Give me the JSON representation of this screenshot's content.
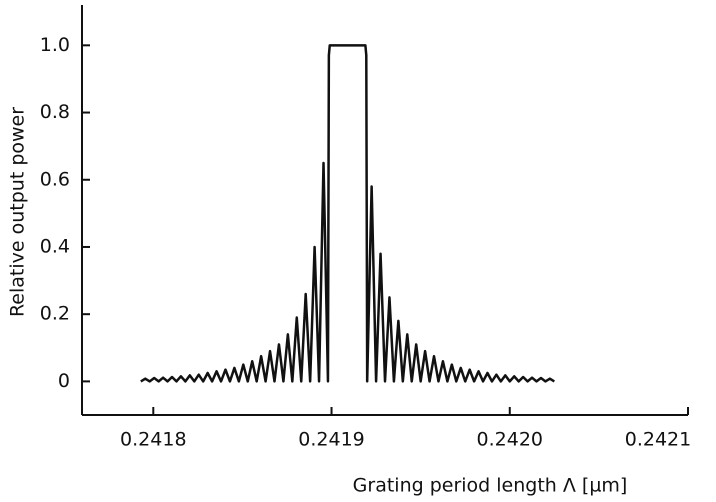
{
  "chart_data": {
    "type": "line",
    "xlabel": "Grating period length Λ [µm]",
    "ylabel": "Relative output power",
    "xlim": [
      0.24176,
      0.2421
    ],
    "ylim": [
      -0.1,
      1.12
    ],
    "xticks": [
      0.2418,
      0.2419,
      {
        "value": 0.242,
        "label": "0.2420"
      },
      0.2421
    ],
    "yticks": [
      0,
      0.2,
      0.4,
      0.6,
      0.8,
      {
        "value": 1,
        "label": "1.0"
      }
    ],
    "color": "#111111",
    "x": [
      0.241793,
      0.2417955,
      0.241798,
      0.2418005,
      0.241803,
      0.2418055,
      0.241808,
      0.2418105,
      0.241813,
      0.2418155,
      0.241818,
      0.2418205,
      0.241823,
      0.2418255,
      0.241828,
      0.2418305,
      0.241833,
      0.2418355,
      0.241838,
      0.2418405,
      0.241843,
      0.2418455,
      0.241848,
      0.2418505,
      0.241853,
      0.2418555,
      0.241858,
      0.2418605,
      0.241863,
      0.2418655,
      0.241868,
      0.2418705,
      0.241873,
      0.2418755,
      0.241878,
      0.2418805,
      0.241883,
      0.2418855,
      0.241888,
      0.2418905,
      0.241893,
      0.2418955,
      0.241898,
      0.2418985,
      0.241899,
      0.241919,
      0.2419195,
      0.24192,
      0.2419225,
      0.241925,
      0.2419275,
      0.24193,
      0.2419325,
      0.241935,
      0.2419375,
      0.24194,
      0.2419425,
      0.241945,
      0.2419475,
      0.24195,
      0.2419525,
      0.241955,
      0.2419575,
      0.24196,
      0.2419625,
      0.241965,
      0.2419675,
      0.24197,
      0.2419725,
      0.241975,
      0.2419775,
      0.24198,
      0.2419825,
      0.241985,
      0.2419875,
      0.24199,
      0.2419925,
      0.241995,
      0.2419975,
      0.242,
      0.2420025,
      0.242005,
      0.2420075,
      0.24201,
      0.2420125,
      0.242015,
      0.2420175,
      0.24202,
      0.2420225,
      0.242025
    ],
    "values": [
      0,
      0.008,
      0,
      0.01,
      0,
      0.011,
      0,
      0.013,
      0,
      0.015,
      0,
      0.018,
      0,
      0.02,
      0,
      0.025,
      0,
      0.03,
      0,
      0.035,
      0,
      0.04,
      0,
      0.05,
      0,
      0.06,
      0,
      0.075,
      0,
      0.09,
      0,
      0.11,
      0,
      0.14,
      0,
      0.19,
      0,
      0.26,
      0,
      0.4,
      0,
      0.65,
      0,
      0.97,
      1,
      1,
      0.97,
      0,
      0.58,
      0,
      0.38,
      0,
      0.25,
      0,
      0.18,
      0,
      0.14,
      0,
      0.11,
      0,
      0.09,
      0,
      0.075,
      0,
      0.06,
      0,
      0.05,
      0,
      0.04,
      0,
      0.035,
      0,
      0.03,
      0,
      0.025,
      0,
      0.02,
      0,
      0.018,
      0,
      0.015,
      0,
      0.013,
      0,
      0.011,
      0,
      0.01,
      0,
      0.008,
      0
    ]
  }
}
